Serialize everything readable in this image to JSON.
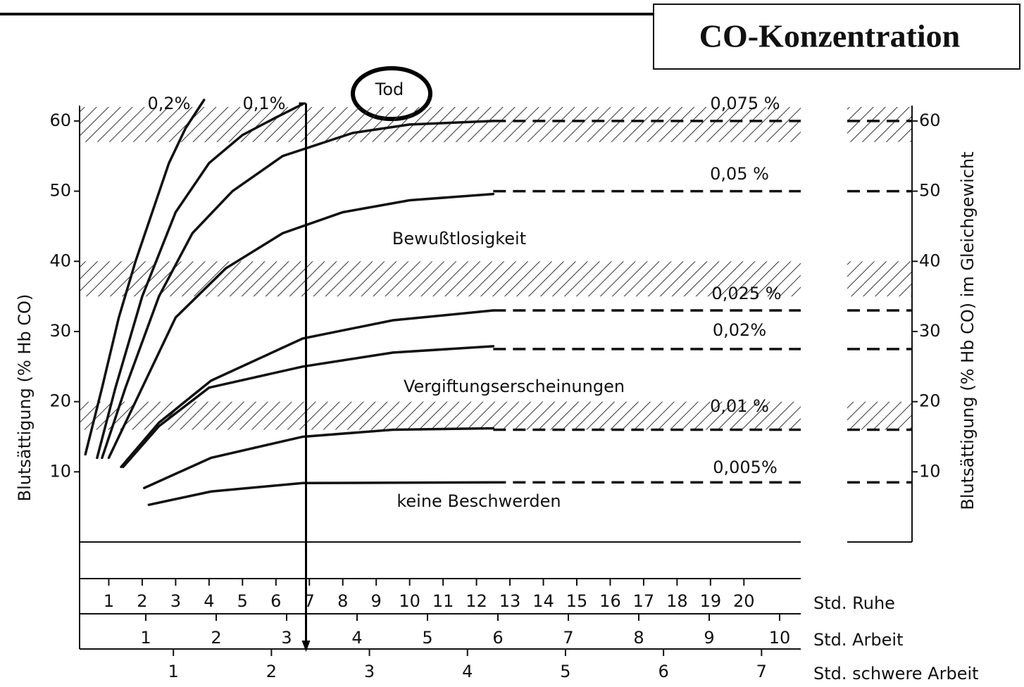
{
  "chart_data": {
    "type": "line",
    "title": "CO-Konzentration",
    "ylabel": "Blutsättigung (% Hb CO)",
    "y2label": "Blutsättigung (% Hb CO) im Gleichgewicht",
    "ylim": [
      0,
      63
    ],
    "yticks": [
      10,
      20,
      30,
      40,
      50,
      60
    ],
    "y2lim": [
      0,
      63
    ],
    "y2ticks": [
      10,
      20,
      30,
      40,
      50,
      60
    ],
    "x_axes": [
      {
        "label": "Std. Ruhe",
        "xlim": [
          0,
          21.7
        ],
        "xticks": [
          1,
          2,
          3,
          4,
          5,
          6,
          7,
          8,
          9,
          10,
          11,
          12,
          13,
          14,
          15,
          16,
          17,
          18,
          19,
          20
        ]
      },
      {
        "label": "Std. Arbeit",
        "xlim": [
          0,
          10.3
        ],
        "xticks": [
          1,
          2,
          3,
          4,
          5,
          6,
          7,
          8,
          9,
          10
        ]
      },
      {
        "label": "Std. schwere Arbeit",
        "xlim": [
          0,
          7.4
        ],
        "xticks": [
          1,
          2,
          3,
          4,
          5,
          6,
          7
        ]
      }
    ],
    "bands": [
      [
        57,
        62
      ],
      [
        35,
        40
      ],
      [
        16,
        20
      ]
    ],
    "annotations": [
      "Tod",
      "Bewußtlosigkeit",
      "Vergiftungserscheinungen",
      "keine Beschwerden"
    ],
    "marker_x": 6.9,
    "series": [
      {
        "name": "0,2%",
        "color": "#111111",
        "x": [
          0.3,
          0.8,
          1.3,
          1.8,
          2.3,
          2.8,
          3.3,
          3.85
        ],
        "values": [
          12.5,
          22,
          32,
          40,
          47,
          54,
          59,
          63
        ]
      },
      {
        "name": "0,1%",
        "color": "#111111",
        "x": [
          0.65,
          1.2,
          2,
          3,
          4,
          5,
          6,
          6.8
        ],
        "values": [
          12,
          22,
          35,
          47,
          54,
          58,
          60.5,
          62.4
        ]
      },
      {
        "name": "0,075 %",
        "color": "#111111",
        "x": [
          0.8,
          1.5,
          2.5,
          3.5,
          4.7,
          6.2,
          8.3,
          10,
          12.5
        ],
        "values": [
          12,
          22,
          35,
          44,
          50,
          55,
          58.3,
          59.5,
          60
        ],
        "equilibrium": 60
      },
      {
        "name": "0,05 %",
        "color": "#111111",
        "x": [
          1,
          1.8,
          3,
          4.5,
          6.2,
          8,
          10,
          12.5
        ],
        "values": [
          12,
          20,
          32,
          39,
          44,
          47,
          48.7,
          49.6
        ],
        "equilibrium": 50
      },
      {
        "name": "0,025 %",
        "color": "#111111",
        "x": [
          1.37,
          2.5,
          4.06,
          6.8,
          9.5,
          12.5
        ],
        "values": [
          10.7,
          17,
          23,
          29,
          31.6,
          33
        ],
        "equilibrium": 33
      },
      {
        "name": "0,02%",
        "color": "#111111",
        "x": [
          1.43,
          2.5,
          4,
          6.8,
          9.5,
          12.5
        ],
        "values": [
          10.7,
          16.5,
          22,
          25,
          27,
          27.9
        ],
        "equilibrium": 27.5
      },
      {
        "name": "0,01 %",
        "color": "#111111",
        "x": [
          2.06,
          4.06,
          6.8,
          9.5,
          12.5
        ],
        "values": [
          7.7,
          12,
          15,
          16,
          16.2
        ],
        "equilibrium": 16
      },
      {
        "name": "0,005%",
        "color": "#111111",
        "x": [
          2.2,
          4.06,
          6.8,
          12.5
        ],
        "values": [
          5.3,
          7.2,
          8.4,
          8.5
        ],
        "equilibrium": 8.5
      }
    ]
  }
}
